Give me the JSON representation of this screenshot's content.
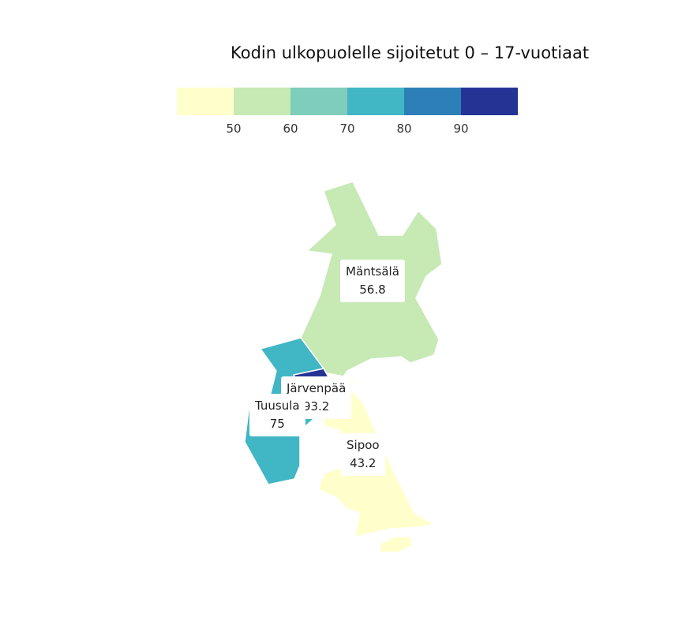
{
  "title": "Kodin ulkopuolelle sijoitetut 0 – 17-vuotiaat",
  "legend": {
    "colors": [
      "#ffffcc",
      "#c7e9b4",
      "#7fcdbb",
      "#41b6c4",
      "#2c7fb8",
      "#253494"
    ],
    "ticks": [
      "50",
      "60",
      "70",
      "80",
      "90"
    ]
  },
  "regions": [
    {
      "name": "Mäntsälä",
      "value": "56.8",
      "color": "#c7e9b4"
    },
    {
      "name": "Järvenpää",
      "value": "93.2",
      "color": "#253494"
    },
    {
      "name": "Tuusula",
      "value": "75",
      "color": "#41b6c4"
    },
    {
      "name": "Sipoo",
      "value": "43.2",
      "color": "#ffffcc"
    }
  ]
}
